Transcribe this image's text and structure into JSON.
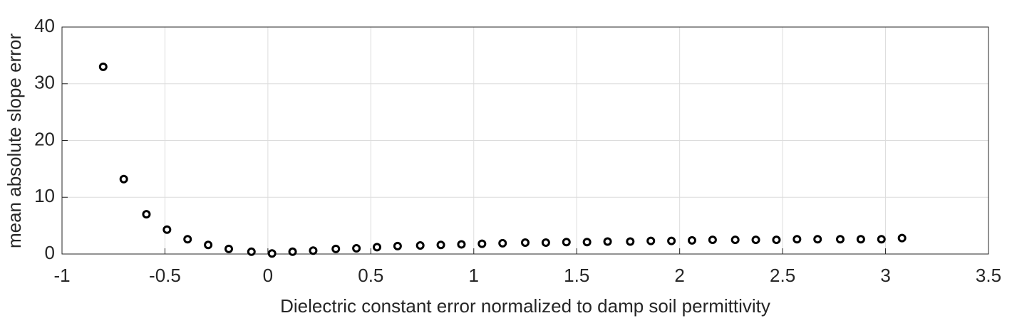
{
  "chart_data": {
    "type": "scatter",
    "x_label": "Dielectric constant error normalized to damp soil permittivity",
    "y_label": "mean absolute slope error",
    "x": [
      -0.8,
      -0.7,
      -0.59,
      -0.49,
      -0.39,
      -0.29,
      -0.19,
      -0.08,
      0.02,
      0.12,
      0.22,
      0.33,
      0.43,
      0.53,
      0.63,
      0.74,
      0.84,
      0.94,
      1.04,
      1.14,
      1.25,
      1.35,
      1.45,
      1.55,
      1.65,
      1.76,
      1.86,
      1.96,
      2.06,
      2.16,
      2.27,
      2.37,
      2.47,
      2.57,
      2.67,
      2.78,
      2.88,
      2.98,
      3.08
    ],
    "values": [
      33.0,
      13.2,
      7.0,
      4.3,
      2.6,
      1.6,
      0.9,
      0.4,
      0.1,
      0.4,
      0.6,
      0.9,
      1.0,
      1.2,
      1.4,
      1.5,
      1.6,
      1.7,
      1.8,
      1.9,
      2.0,
      2.0,
      2.1,
      2.1,
      2.2,
      2.2,
      2.3,
      2.3,
      2.4,
      2.5,
      2.5,
      2.5,
      2.5,
      2.6,
      2.6,
      2.6,
      2.6,
      2.6,
      2.8
    ],
    "color": "#000000",
    "xlim": [
      -1,
      3.5
    ],
    "xticks": [
      -1,
      -0.5,
      0,
      0.5,
      1,
      1.5,
      2,
      2.5,
      3,
      3.5
    ],
    "ylim": [
      0,
      40
    ],
    "yticks": [
      0,
      10,
      20,
      30,
      40
    ],
    "grid": true
  }
}
